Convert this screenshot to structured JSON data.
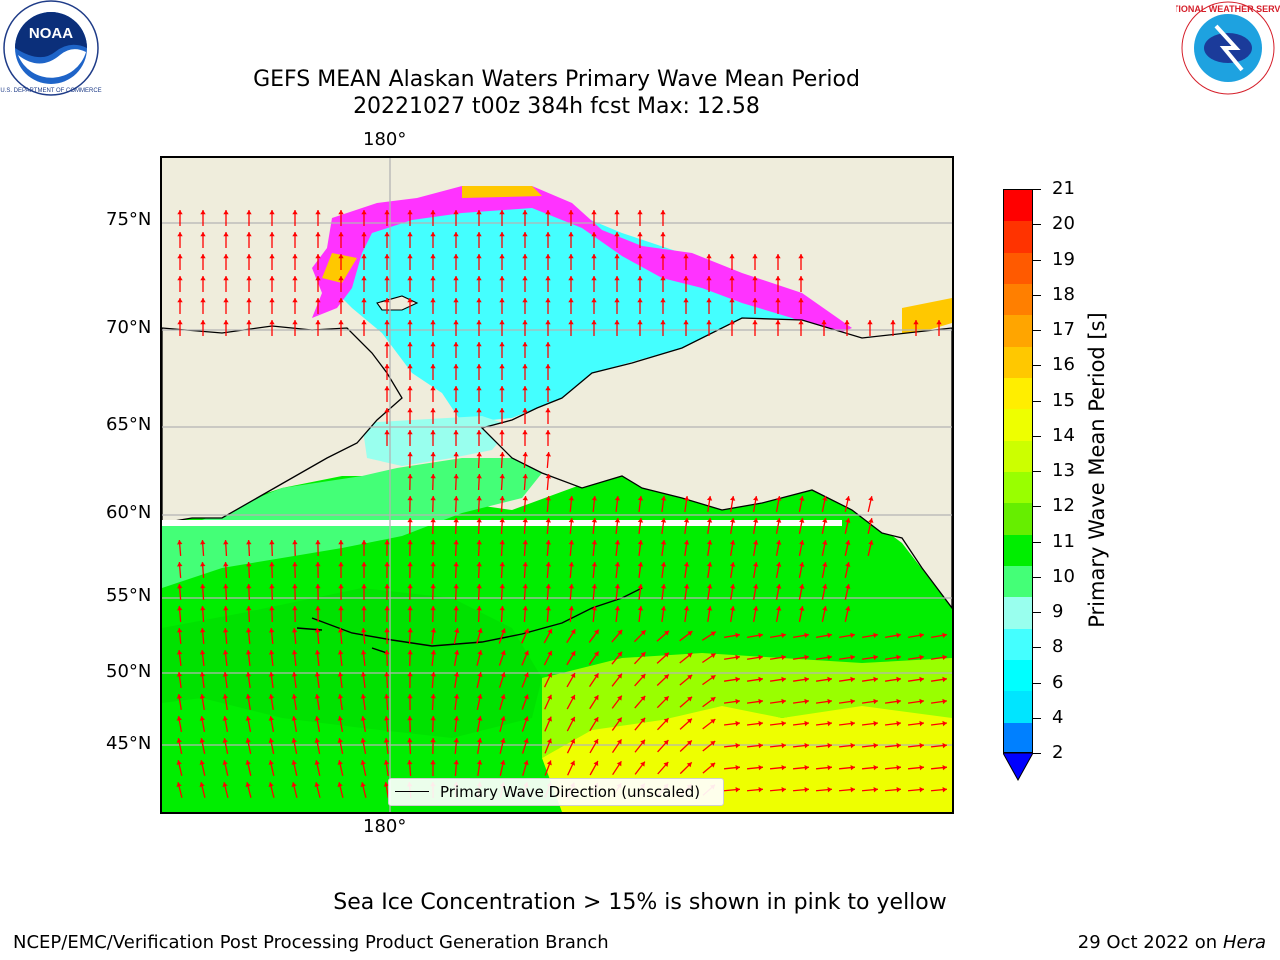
{
  "title_line1": "GEFS MEAN Alaskan Waters Primary Wave Mean Period",
  "title_line2": "20221027 t00z 384h fcst   Max: 12.58",
  "top_axis_label": "180°",
  "bottom_axis_label": "180°",
  "lat_labels": [
    "75°N",
    "70°N",
    "65°N",
    "60°N",
    "55°N",
    "50°N",
    "45°N"
  ],
  "legend_label": "Primary Wave Direction (unscaled)",
  "colorbar": {
    "label": "Primary Wave Mean Period [s]",
    "ticks": [
      "21",
      "20",
      "19",
      "18",
      "17",
      "16",
      "15",
      "14",
      "13",
      "12",
      "11",
      "10",
      "9",
      "8",
      "6",
      "4",
      "2"
    ],
    "colors": [
      "#ff0000",
      "#ff3300",
      "#ff5a00",
      "#ff7f00",
      "#ffa500",
      "#ffc800",
      "#ffee00",
      "#eeff00",
      "#ccff00",
      "#99ff00",
      "#66ee00",
      "#00ee00",
      "#44ff77",
      "#99ffee",
      "#44ffff",
      "#00ffff",
      "#00e5ff",
      "#0080ff"
    ],
    "extend_color": "#0000ff"
  },
  "note": "Sea Ice Concentration > 15% is shown in pink to yellow",
  "footer_left": "NCEP/EMC/Verification Post Processing Product Generation Branch",
  "footer_right_date": "29 Oct 2022 on ",
  "footer_right_machine": "Hera",
  "logos": {
    "left": "NOAA",
    "right": "NATIONAL WEATHER SERVICE"
  },
  "colors": {
    "land": "#efeddc",
    "arrow": "#ff0000",
    "ice_pink": "#ff33ff",
    "grid": "#b4b4b4"
  }
}
